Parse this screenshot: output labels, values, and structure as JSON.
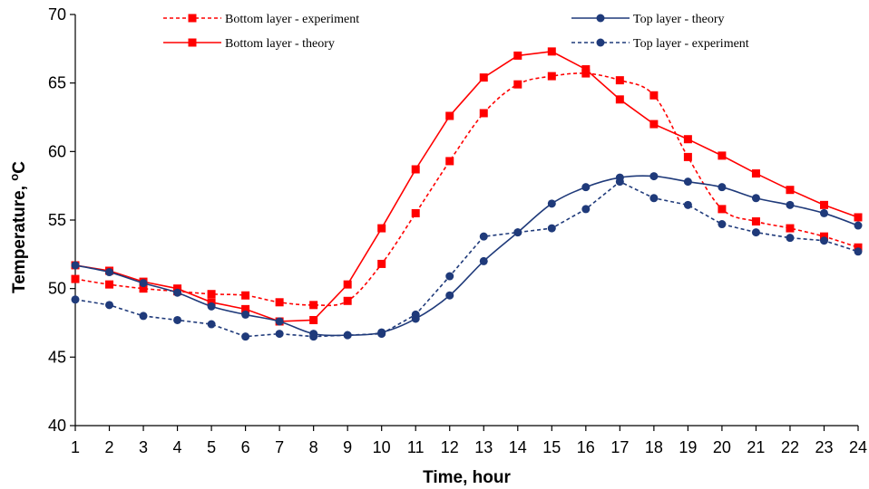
{
  "chart_data": {
    "type": "line",
    "title": "",
    "xlabel": "Time, hour",
    "ylabel_main": "Temperature, ",
    "ylabel_sup": "o",
    "ylabel_unit": "C",
    "xlim": [
      1,
      24
    ],
    "ylim": [
      40,
      70
    ],
    "x": [
      1,
      2,
      3,
      4,
      5,
      6,
      7,
      8,
      9,
      10,
      11,
      12,
      13,
      14,
      15,
      16,
      17,
      18,
      19,
      20,
      21,
      22,
      23,
      24
    ],
    "x_ticks": [
      "1",
      "2",
      "3",
      "4",
      "5",
      "6",
      "7",
      "8",
      "9",
      "10",
      "11",
      "12",
      "13",
      "14",
      "15",
      "16",
      "17",
      "18",
      "19",
      "20",
      "21",
      "22",
      "23",
      "24"
    ],
    "y_ticks": [
      "40",
      "45",
      "50",
      "55",
      "60",
      "65",
      "70"
    ],
    "y_tick_values": [
      40,
      45,
      50,
      55,
      60,
      65,
      70
    ],
    "grid": false,
    "legend_position": "top",
    "series": [
      {
        "name": "Bottom layer - experiment",
        "color": "#ff0000",
        "dashed": true,
        "marker": "square",
        "smooth": true,
        "values": [
          50.7,
          50.3,
          50.0,
          49.8,
          49.6,
          49.5,
          49.0,
          48.8,
          49.1,
          51.8,
          55.5,
          59.3,
          62.8,
          64.9,
          65.5,
          65.7,
          65.2,
          64.1,
          59.6,
          55.8,
          54.9,
          54.4,
          53.8,
          53.0
        ]
      },
      {
        "name": "Bottom layer - theory",
        "color": "#ff0000",
        "dashed": false,
        "marker": "square",
        "smooth": false,
        "values": [
          51.7,
          51.3,
          50.5,
          50.0,
          49.0,
          48.5,
          47.6,
          47.7,
          50.3,
          54.4,
          58.7,
          62.6,
          65.4,
          67.0,
          67.3,
          66.0,
          63.8,
          62.0,
          60.9,
          59.7,
          58.4,
          57.2,
          56.1,
          55.2
        ]
      },
      {
        "name": "Top layer - theory",
        "color": "#1f3a7a",
        "dashed": false,
        "marker": "circle",
        "smooth": true,
        "values": [
          51.7,
          51.2,
          50.4,
          49.7,
          48.7,
          48.1,
          47.6,
          46.7,
          46.6,
          46.8,
          47.8,
          49.5,
          52.0,
          54.1,
          56.2,
          57.4,
          58.1,
          58.2,
          57.8,
          57.4,
          56.6,
          56.1,
          55.5,
          54.6
        ]
      },
      {
        "name": "Top layer - experiment",
        "color": "#1f3a7a",
        "dashed": true,
        "marker": "circle",
        "smooth": false,
        "values": [
          49.2,
          48.8,
          48.0,
          47.7,
          47.4,
          46.5,
          46.7,
          46.5,
          46.6,
          46.7,
          48.1,
          50.9,
          53.8,
          54.1,
          54.4,
          55.8,
          57.8,
          56.6,
          56.1,
          54.7,
          54.1,
          53.7,
          53.5,
          52.7
        ]
      }
    ],
    "legend": [
      {
        "series_index": 0,
        "label": "Bottom layer - experiment"
      },
      {
        "series_index": 1,
        "label": "Bottom layer - theory"
      },
      {
        "series_index": 2,
        "label": "Top layer - theory"
      },
      {
        "series_index": 3,
        "label": "Top layer - experiment"
      }
    ]
  }
}
